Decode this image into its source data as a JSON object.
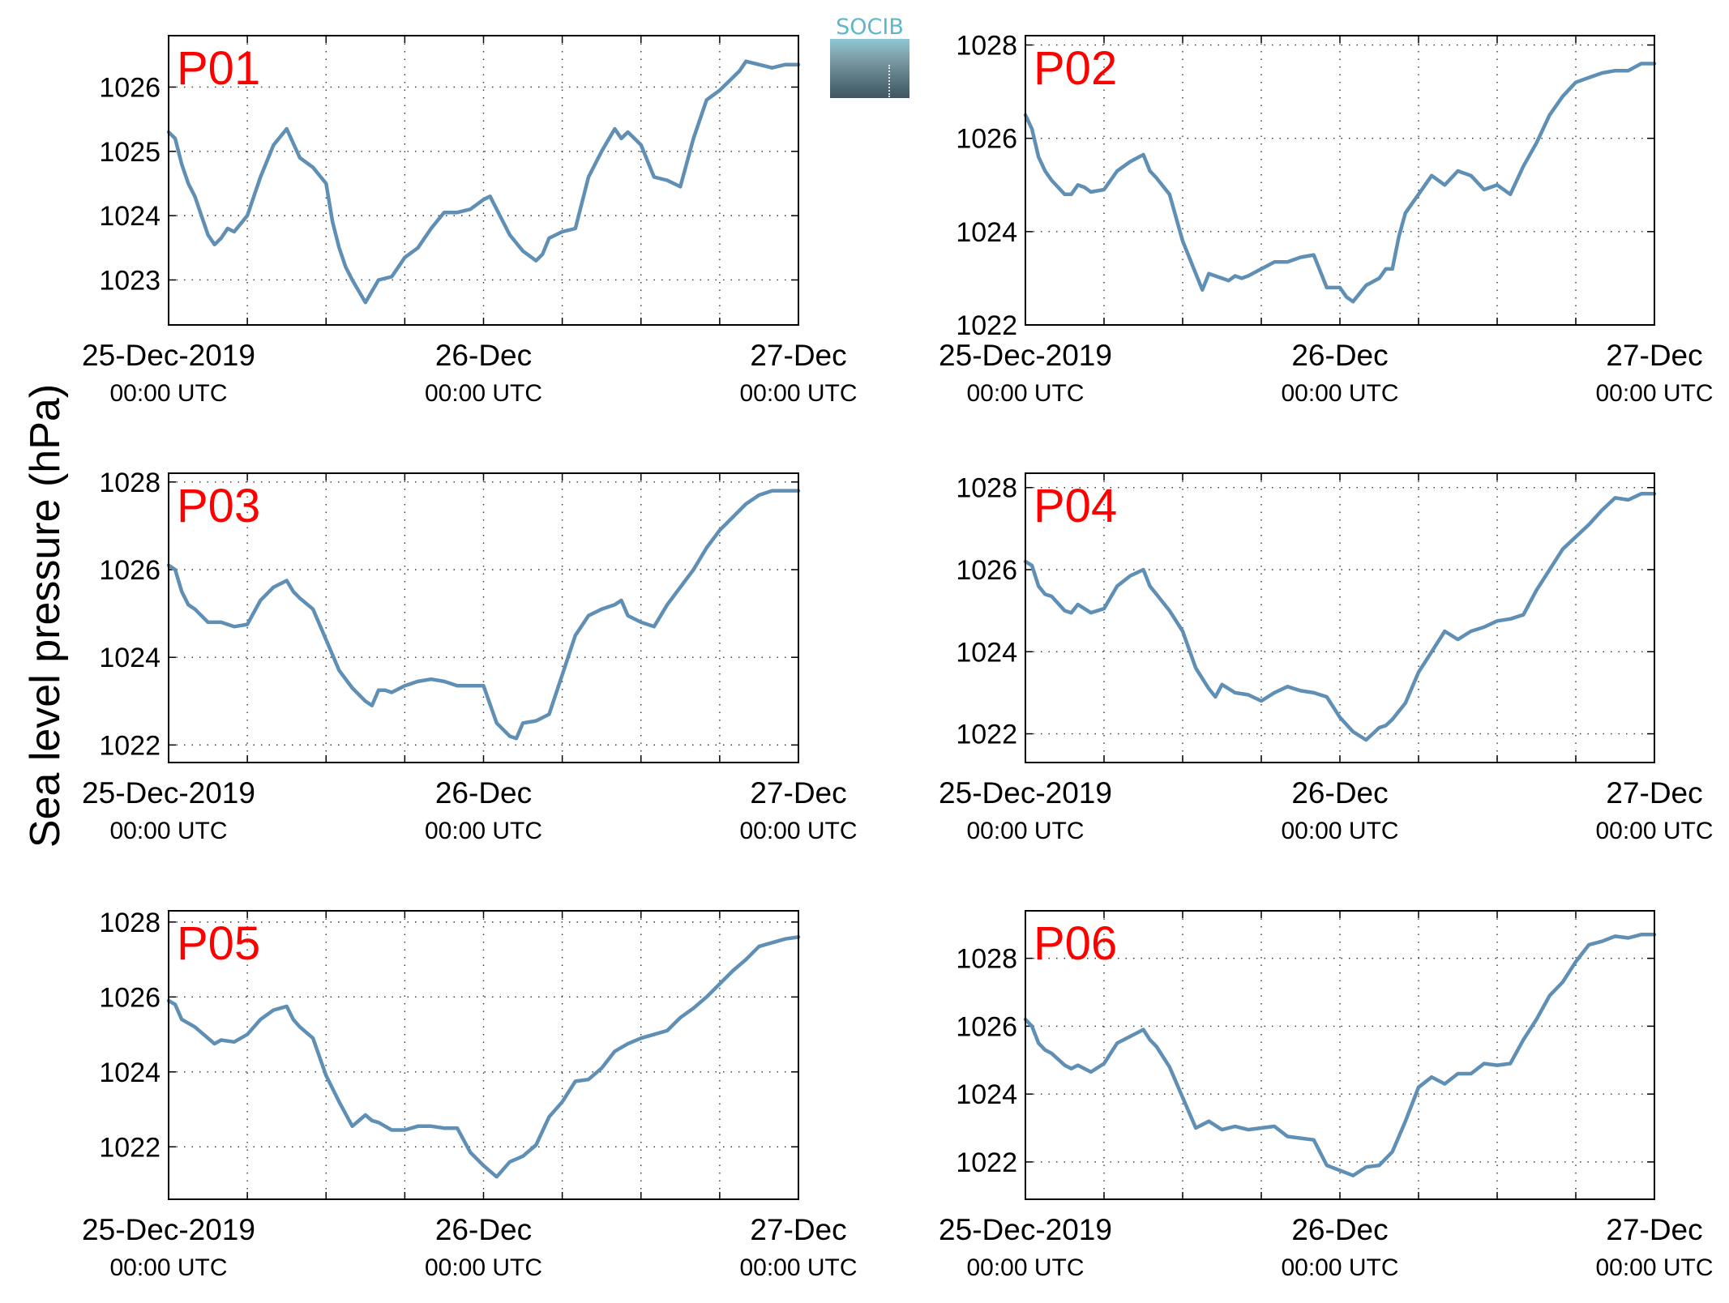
{
  "figure": {
    "ylabel": "Sea level pressure (hPa)",
    "logo_text": "SOCIB"
  },
  "chart_data": [
    {
      "type": "line",
      "panel": "P01",
      "x_ticks": [
        {
          "x": 0,
          "date": "25-Dec-2019",
          "time": "00:00 UTC"
        },
        {
          "x": 24,
          "date": "26-Dec",
          "time": "00:00 UTC"
        },
        {
          "x": 48,
          "date": "27-Dec",
          "time": "00:00 UTC"
        }
      ],
      "xlim": [
        0,
        48
      ],
      "ylim": [
        1022.3,
        1026.8
      ],
      "yticks": [
        1023,
        1024,
        1025,
        1026
      ],
      "grid": true,
      "series": [
        {
          "color": "#5f8fb4",
          "x": [
            0,
            0.5,
            1,
            1.5,
            2,
            2.5,
            3,
            3.5,
            4,
            4.5,
            5,
            6,
            7,
            8,
            9,
            10,
            11,
            12,
            12.5,
            13,
            13.5,
            14,
            15,
            16,
            17,
            17.5,
            18,
            19,
            20,
            21,
            22,
            23,
            24,
            24.5,
            25,
            25.5,
            26,
            27,
            28,
            28.5,
            29,
            30,
            31,
            32,
            33,
            34,
            34.5,
            35,
            35.5,
            36,
            37,
            38,
            39,
            40,
            41,
            42,
            43,
            43.5,
            44,
            45,
            46,
            47,
            48
          ],
          "y": [
            1025.3,
            1025.2,
            1024.8,
            1024.5,
            1024.3,
            1024.0,
            1023.7,
            1023.55,
            1023.65,
            1023.8,
            1023.75,
            1024.0,
            1024.6,
            1025.1,
            1025.35,
            1024.9,
            1024.75,
            1024.5,
            1023.9,
            1023.5,
            1023.2,
            1023.0,
            1022.65,
            1023.0,
            1023.05,
            1023.2,
            1023.35,
            1023.5,
            1023.8,
            1024.05,
            1024.05,
            1024.1,
            1024.25,
            1024.3,
            1024.1,
            1023.9,
            1023.7,
            1023.45,
            1023.3,
            1023.4,
            1023.65,
            1023.75,
            1023.8,
            1024.6,
            1025.0,
            1025.35,
            1025.2,
            1025.3,
            1025.2,
            1025.1,
            1024.6,
            1024.55,
            1024.45,
            1025.2,
            1025.8,
            1025.95,
            1026.15,
            1026.25,
            1026.4,
            1026.35,
            1026.3,
            1026.35,
            1026.35
          ]
        }
      ]
    },
    {
      "type": "line",
      "panel": "P02",
      "x_ticks": [
        {
          "x": 0,
          "date": "25-Dec-2019",
          "time": "00:00 UTC"
        },
        {
          "x": 24,
          "date": "26-Dec",
          "time": "00:00 UTC"
        },
        {
          "x": 48,
          "date": "27-Dec",
          "time": "00:00 UTC"
        }
      ],
      "xlim": [
        0,
        48
      ],
      "ylim": [
        1022,
        1028.2
      ],
      "yticks": [
        1022,
        1024,
        1026,
        1028
      ],
      "grid": true,
      "series": [
        {
          "color": "#5f8fb4",
          "x": [
            0,
            0.5,
            1,
            1.5,
            2,
            3,
            3.5,
            4,
            4.5,
            5,
            6,
            7,
            8,
            9,
            9.5,
            10,
            11,
            12,
            13,
            13.5,
            14,
            15,
            15.5,
            16,
            16.5,
            17,
            18,
            19,
            20,
            21,
            22,
            23,
            24,
            24.5,
            25,
            26,
            27,
            27.5,
            28,
            28.5,
            29,
            30,
            31,
            32,
            33,
            34,
            35,
            36,
            37,
            38,
            39,
            40,
            41,
            42,
            43,
            44,
            45,
            46,
            47,
            48
          ],
          "y": [
            1026.5,
            1026.2,
            1025.6,
            1025.3,
            1025.1,
            1024.8,
            1024.8,
            1025.0,
            1024.95,
            1024.85,
            1024.9,
            1025.3,
            1025.5,
            1025.65,
            1025.3,
            1025.15,
            1024.8,
            1023.8,
            1023.1,
            1022.75,
            1023.1,
            1023.0,
            1022.95,
            1023.05,
            1023.0,
            1023.05,
            1023.2,
            1023.35,
            1023.35,
            1023.45,
            1023.5,
            1022.8,
            1022.8,
            1022.6,
            1022.5,
            1022.85,
            1023.0,
            1023.2,
            1023.2,
            1023.9,
            1024.4,
            1024.8,
            1025.2,
            1025.0,
            1025.3,
            1025.2,
            1024.9,
            1025.0,
            1024.8,
            1025.4,
            1025.9,
            1026.5,
            1026.9,
            1027.2,
            1027.3,
            1027.4,
            1027.45,
            1027.45,
            1027.6,
            1027.6
          ]
        }
      ]
    },
    {
      "type": "line",
      "panel": "P03",
      "x_ticks": [
        {
          "x": 0,
          "date": "25-Dec-2019",
          "time": "00:00 UTC"
        },
        {
          "x": 24,
          "date": "26-Dec",
          "time": "00:00 UTC"
        },
        {
          "x": 48,
          "date": "27-Dec",
          "time": "00:00 UTC"
        }
      ],
      "xlim": [
        0,
        48
      ],
      "ylim": [
        1021.6,
        1028.2
      ],
      "yticks": [
        1022,
        1024,
        1026,
        1028
      ],
      "grid": true,
      "series": [
        {
          "color": "#5f8fb4",
          "x": [
            0,
            0.5,
            1,
            1.5,
            2,
            3,
            4,
            5,
            6,
            7,
            8,
            9,
            9.5,
            10,
            11,
            12,
            13,
            14,
            15,
            15.5,
            16,
            16.5,
            17,
            18,
            19,
            20,
            21,
            22,
            23,
            24,
            25,
            26,
            26.5,
            27,
            28,
            29,
            30,
            31,
            32,
            33,
            34,
            34.5,
            35,
            36,
            37,
            38,
            39,
            40,
            41,
            42,
            43,
            44,
            45,
            46,
            47,
            48
          ],
          "y": [
            1026.1,
            1026.0,
            1025.5,
            1025.2,
            1025.1,
            1024.8,
            1024.8,
            1024.7,
            1024.75,
            1025.3,
            1025.6,
            1025.75,
            1025.5,
            1025.35,
            1025.1,
            1024.4,
            1023.7,
            1023.3,
            1023.0,
            1022.9,
            1023.25,
            1023.25,
            1023.2,
            1023.35,
            1023.45,
            1023.5,
            1023.45,
            1023.35,
            1023.35,
            1023.35,
            1022.5,
            1022.2,
            1022.15,
            1022.5,
            1022.55,
            1022.7,
            1023.6,
            1024.5,
            1024.95,
            1025.1,
            1025.2,
            1025.3,
            1024.95,
            1024.8,
            1024.7,
            1025.2,
            1025.6,
            1026.0,
            1026.5,
            1026.9,
            1027.2,
            1027.5,
            1027.7,
            1027.8,
            1027.8,
            1027.8
          ]
        }
      ]
    },
    {
      "type": "line",
      "panel": "P04",
      "x_ticks": [
        {
          "x": 0,
          "date": "25-Dec-2019",
          "time": "00:00 UTC"
        },
        {
          "x": 24,
          "date": "26-Dec",
          "time": "00:00 UTC"
        },
        {
          "x": 48,
          "date": "27-Dec",
          "time": "00:00 UTC"
        }
      ],
      "xlim": [
        0,
        48
      ],
      "ylim": [
        1021.3,
        1028.35
      ],
      "yticks": [
        1022,
        1024,
        1026,
        1028
      ],
      "grid": true,
      "series": [
        {
          "color": "#5f8fb4",
          "x": [
            0,
            0.5,
            1,
            1.5,
            2,
            3,
            3.5,
            4,
            5,
            6,
            7,
            8,
            9,
            9.5,
            10,
            11,
            12,
            13,
            14,
            14.5,
            15,
            16,
            17,
            18,
            19,
            20,
            21,
            22,
            23,
            24,
            25,
            26,
            27,
            27.5,
            28,
            29,
            30,
            31,
            32,
            33,
            34,
            35,
            36,
            37,
            38,
            39,
            40,
            41,
            42,
            43,
            44,
            45,
            46,
            47,
            48
          ],
          "y": [
            1026.2,
            1026.1,
            1025.6,
            1025.4,
            1025.35,
            1025.0,
            1024.95,
            1025.15,
            1024.95,
            1025.05,
            1025.6,
            1025.85,
            1026.0,
            1025.6,
            1025.4,
            1025.0,
            1024.5,
            1023.6,
            1023.1,
            1022.9,
            1023.2,
            1023.0,
            1022.95,
            1022.8,
            1023.0,
            1023.15,
            1023.05,
            1023.0,
            1022.9,
            1022.4,
            1022.05,
            1021.85,
            1022.15,
            1022.2,
            1022.35,
            1022.75,
            1023.5,
            1024.0,
            1024.5,
            1024.3,
            1024.5,
            1024.6,
            1024.75,
            1024.8,
            1024.9,
            1025.5,
            1026.0,
            1026.5,
            1026.8,
            1027.1,
            1027.45,
            1027.75,
            1027.7,
            1027.85,
            1027.85
          ]
        }
      ]
    },
    {
      "type": "line",
      "panel": "P05",
      "x_ticks": [
        {
          "x": 0,
          "date": "25-Dec-2019",
          "time": "00:00 UTC"
        },
        {
          "x": 24,
          "date": "26-Dec",
          "time": "00:00 UTC"
        },
        {
          "x": 48,
          "date": "27-Dec",
          "time": "00:00 UTC"
        }
      ],
      "xlim": [
        0,
        48
      ],
      "ylim": [
        1020.6,
        1028.3
      ],
      "yticks": [
        1022,
        1024,
        1026,
        1028
      ],
      "grid": true,
      "series": [
        {
          "color": "#5f8fb4",
          "x": [
            0,
            0.5,
            1,
            1.5,
            2,
            3,
            3.5,
            4,
            5,
            6,
            7,
            8,
            9,
            9.5,
            10,
            11,
            12,
            13,
            14,
            15,
            15.5,
            16,
            17,
            18,
            19,
            20,
            21,
            22,
            23,
            24,
            25,
            26,
            27,
            27.5,
            28,
            29,
            30,
            31,
            32,
            33,
            34,
            35,
            36,
            37,
            38,
            39,
            40,
            41,
            42,
            43,
            44,
            45,
            46,
            47,
            48
          ],
          "y": [
            1025.9,
            1025.8,
            1025.4,
            1025.3,
            1025.2,
            1024.9,
            1024.75,
            1024.85,
            1024.8,
            1025.0,
            1025.4,
            1025.65,
            1025.75,
            1025.4,
            1025.2,
            1024.9,
            1023.9,
            1023.2,
            1022.55,
            1022.85,
            1022.7,
            1022.65,
            1022.45,
            1022.45,
            1022.55,
            1022.55,
            1022.5,
            1022.5,
            1021.85,
            1021.5,
            1021.2,
            1021.6,
            1021.75,
            1021.9,
            1022.05,
            1022.8,
            1023.2,
            1023.75,
            1023.8,
            1024.1,
            1024.55,
            1024.75,
            1024.9,
            1025.0,
            1025.1,
            1025.45,
            1025.7,
            1026.0,
            1026.35,
            1026.7,
            1027.0,
            1027.35,
            1027.45,
            1027.55,
            1027.6
          ]
        }
      ]
    },
    {
      "type": "line",
      "panel": "P06",
      "x_ticks": [
        {
          "x": 0,
          "date": "25-Dec-2019",
          "time": "00:00 UTC"
        },
        {
          "x": 24,
          "date": "26-Dec",
          "time": "00:00 UTC"
        },
        {
          "x": 48,
          "date": "27-Dec",
          "time": "00:00 UTC"
        }
      ],
      "xlim": [
        0,
        48
      ],
      "ylim": [
        1020.9,
        1029.4
      ],
      "yticks": [
        1022,
        1024,
        1026,
        1028
      ],
      "grid": true,
      "series": [
        {
          "color": "#5f8fb4",
          "x": [
            0,
            0.5,
            1,
            1.5,
            2,
            3,
            3.5,
            4,
            5,
            6,
            7,
            8,
            9,
            9.5,
            10,
            11,
            12,
            13,
            14,
            15,
            16,
            17,
            18,
            19,
            20,
            21,
            22,
            23,
            24,
            25,
            26,
            27,
            28,
            29,
            30,
            31,
            32,
            33,
            34,
            35,
            36,
            37,
            38,
            39,
            40,
            41,
            42,
            43,
            44,
            45,
            46,
            47,
            48
          ],
          "y": [
            1026.2,
            1026.0,
            1025.5,
            1025.3,
            1025.2,
            1024.85,
            1024.75,
            1024.85,
            1024.65,
            1024.9,
            1025.5,
            1025.7,
            1025.9,
            1025.6,
            1025.4,
            1024.8,
            1023.9,
            1023.0,
            1023.2,
            1022.95,
            1023.05,
            1022.95,
            1023.0,
            1023.05,
            1022.75,
            1022.7,
            1022.65,
            1021.9,
            1021.75,
            1021.6,
            1021.85,
            1021.9,
            1022.3,
            1023.2,
            1024.2,
            1024.5,
            1024.3,
            1024.6,
            1024.6,
            1024.9,
            1024.85,
            1024.9,
            1025.6,
            1026.2,
            1026.9,
            1027.3,
            1027.9,
            1028.4,
            1028.5,
            1028.65,
            1028.6,
            1028.7,
            1028.7
          ]
        }
      ]
    }
  ]
}
